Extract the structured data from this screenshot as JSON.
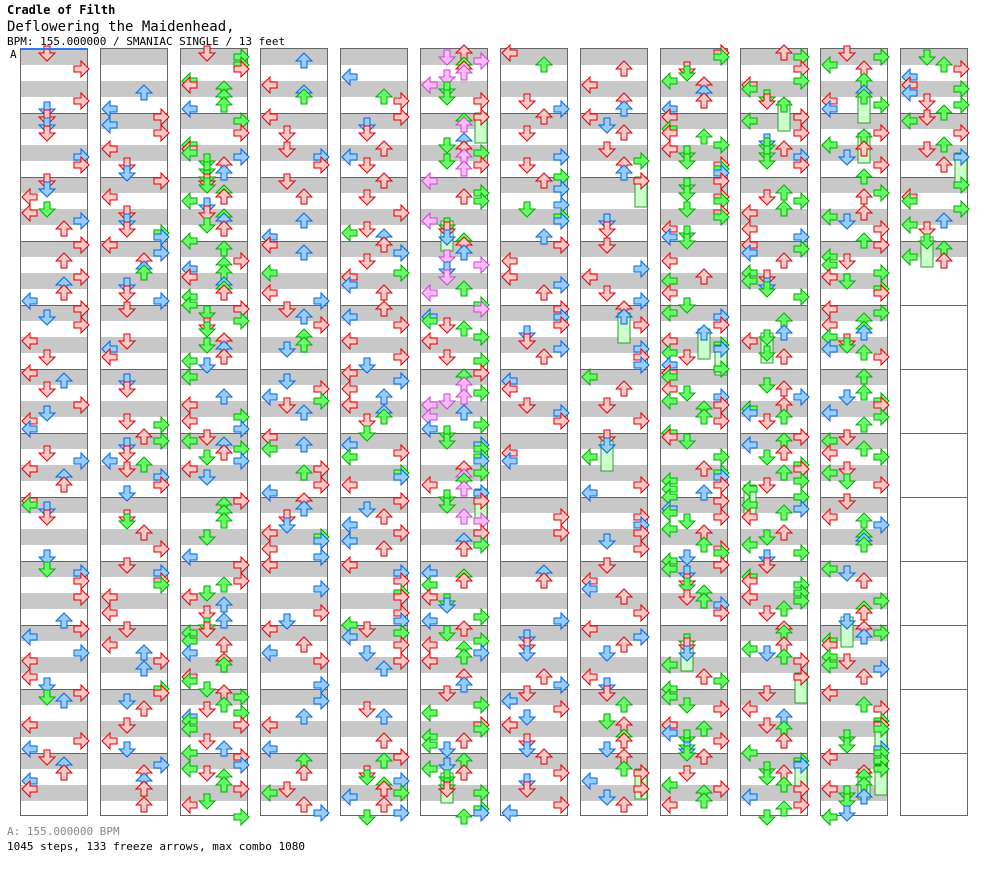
{
  "header": {
    "artist": "Cradle of Filth",
    "title": "Deflowering the Maidenhead,",
    "info": "BPM: 155.000000 / SMANIAC SINGLE / 13 feet",
    "speed_marker": "A"
  },
  "footer": {
    "bpm_legend": "A: 155.000000 BPM",
    "stats": "1045 steps, 133 freeze arrows, max combo 1080"
  },
  "colors": {
    "quarter": "#ffc8c8",
    "quarter_stroke": "#dd0000",
    "eighth": "#99ccff",
    "eighth_stroke": "#0066dd",
    "sixteenth": "#66ff66",
    "sixteenth_stroke": "#00aa00",
    "other": "#ffbbff",
    "other_stroke": "#cc44cc",
    "freeze": "#ccffcc",
    "bpm_line": "#3377ee"
  },
  "columns": 12,
  "measures_per_column": 12
}
